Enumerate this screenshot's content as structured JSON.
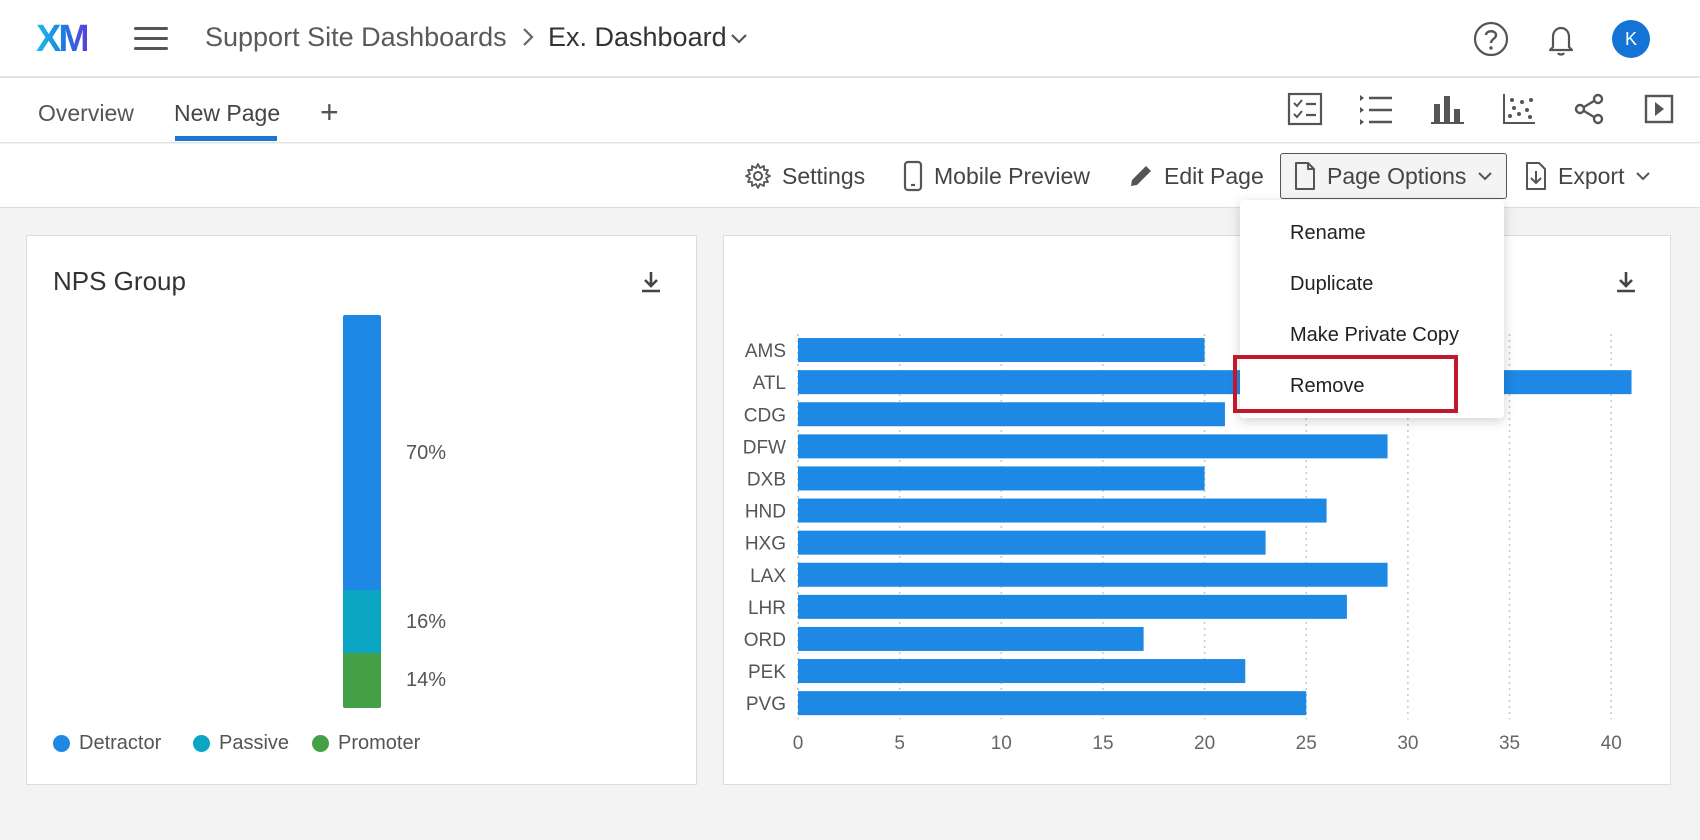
{
  "header": {
    "logo": "XM",
    "breadcrumb_parent": "Support Site Dashboards",
    "breadcrumb_current": "Ex. Dashboard",
    "avatar_initial": "K",
    "icons": [
      "help-icon",
      "bell-icon"
    ]
  },
  "tabs": {
    "items": [
      "Overview",
      "New Page"
    ],
    "active": "New Page",
    "add_label": "+"
  },
  "toolbar_icons": [
    "checklist-icon",
    "list-icon",
    "bar-chart-icon",
    "scatter-icon",
    "share-icon",
    "present-icon"
  ],
  "actions": {
    "settings": "Settings",
    "mobile_preview": "Mobile Preview",
    "edit_page": "Edit Page",
    "page_options": "Page Options",
    "export": "Export"
  },
  "page_options_menu": {
    "items": [
      "Rename",
      "Duplicate",
      "Make Private Copy",
      "Remove"
    ],
    "highlighted": "Remove"
  },
  "widgets": {
    "nps": {
      "title": "NPS Group",
      "segments": [
        {
          "name": "Detractor",
          "percent": 70,
          "label": "70%",
          "color": "#1e88e5"
        },
        {
          "name": "Passive",
          "percent": 16,
          "label": "16%",
          "color": "#0aa6c4"
        },
        {
          "name": "Promoter",
          "percent": 14,
          "label": "14%",
          "color": "#43a047"
        }
      ]
    }
  },
  "chart_data": {
    "type": "bar",
    "orientation": "horizontal",
    "title": "",
    "categories": [
      "AMS",
      "ATL",
      "CDG",
      "DFW",
      "DXB",
      "HND",
      "HXG",
      "LAX",
      "LHR",
      "ORD",
      "PEK",
      "PVG"
    ],
    "values": [
      20,
      41,
      21,
      29,
      20,
      26,
      23,
      29,
      27,
      17,
      22,
      25
    ],
    "xlim": [
      0,
      41
    ],
    "xticks": [
      0,
      5,
      10,
      15,
      20,
      25,
      30,
      35,
      40
    ],
    "grid": "dotted-vertical",
    "bar_color": "#1e88e5"
  }
}
